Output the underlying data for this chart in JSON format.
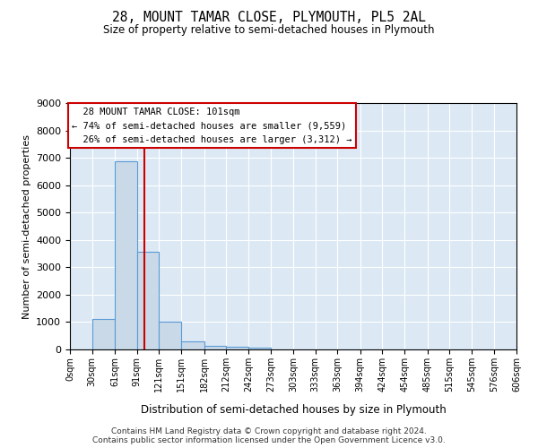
{
  "title": "28, MOUNT TAMAR CLOSE, PLYMOUTH, PL5 2AL",
  "subtitle": "Size of property relative to semi-detached houses in Plymouth",
  "xlabel": "Distribution of semi-detached houses by size in Plymouth",
  "ylabel": "Number of semi-detached properties",
  "property_label": "28 MOUNT TAMAR CLOSE: 101sqm",
  "pct_smaller": 74,
  "pct_larger": 26,
  "n_smaller": "9,559",
  "n_larger": "3,312",
  "bin_edges": [
    0,
    30,
    61,
    91,
    121,
    151,
    182,
    212,
    242,
    273,
    303,
    333,
    363,
    394,
    424,
    454,
    485,
    515,
    545,
    576,
    606
  ],
  "bar_heights": [
    0,
    1120,
    6880,
    3560,
    1000,
    310,
    140,
    100,
    80,
    0,
    0,
    0,
    0,
    0,
    0,
    0,
    0,
    0,
    0,
    0
  ],
  "bar_color": "#c9d9e8",
  "bar_edge_color": "#5b9bd5",
  "vline_color": "#cc0000",
  "vline_x": 101,
  "ylim": [
    0,
    9000
  ],
  "yticks": [
    0,
    1000,
    2000,
    3000,
    4000,
    5000,
    6000,
    7000,
    8000,
    9000
  ],
  "annotation_box_color": "#cc0000",
  "background_color": "#dce9f5",
  "grid_color": "#ffffff",
  "footer_line1": "Contains HM Land Registry data © Crown copyright and database right 2024.",
  "footer_line2": "Contains public sector information licensed under the Open Government Licence v3.0."
}
